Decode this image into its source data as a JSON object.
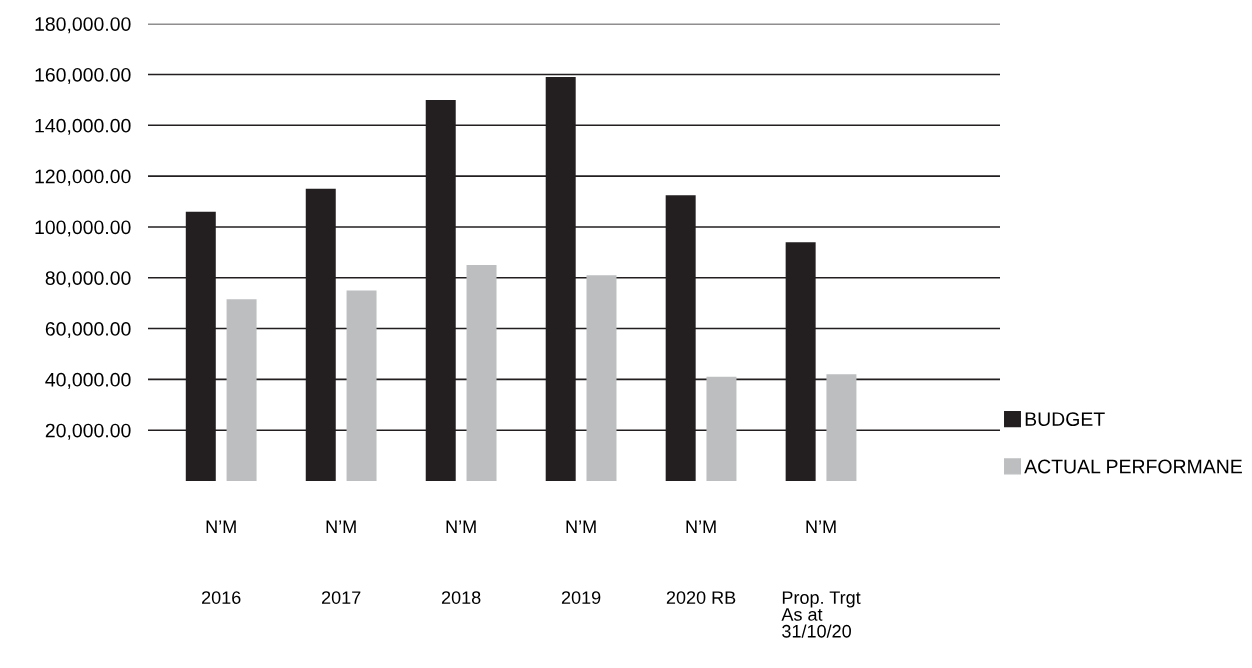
{
  "chart_data": {
    "type": "bar",
    "categories": [
      "N’M\n2016",
      "N’M\n2017",
      "N’M\n2018",
      "N’M\n2019",
      "N’M\n2020 RB",
      "N’M\nProp. Trgt\nAs at\n31/10/20"
    ],
    "series": [
      {
        "name": "BUDGET",
        "color": "#231f20",
        "values": [
          106000,
          115000,
          150000,
          159000,
          112500,
          94000
        ]
      },
      {
        "name": "ACTUAL PERFORMANE",
        "color": "#bcbec0",
        "values": [
          71500,
          75000,
          85000,
          81000,
          41000,
          42000
        ]
      }
    ],
    "ylim": [
      0,
      180000
    ],
    "yticks": [
      {
        "value": 20000,
        "label": "20,000.00"
      },
      {
        "value": 40000,
        "label": "40,000.00"
      },
      {
        "value": 60000,
        "label": "60,000.00"
      },
      {
        "value": 80000,
        "label": "80,000.00"
      },
      {
        "value": 100000,
        "label": "100,000.00"
      },
      {
        "value": 120000,
        "label": "120,000.00"
      },
      {
        "value": 140000,
        "label": "140,000.00"
      },
      {
        "value": 160000,
        "label": "160,000.00"
      },
      {
        "value": 180000,
        "label": "180,000.00"
      }
    ],
    "grid": "y",
    "legend": "right"
  }
}
